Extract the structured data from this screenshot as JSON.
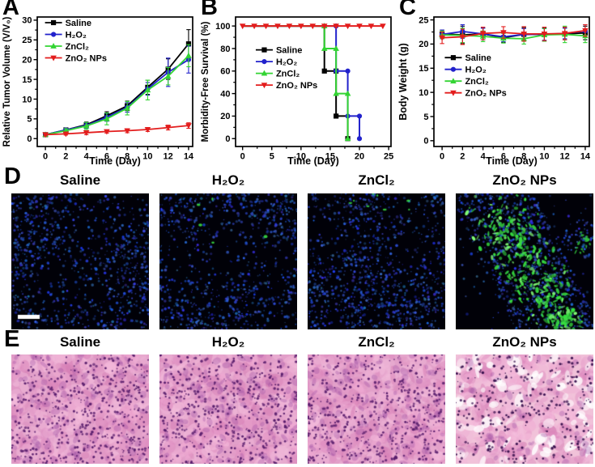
{
  "colors": {
    "background": "#ffffff",
    "axis": "#000000",
    "saline": "#000000",
    "h2o2_blue": "#2222cc",
    "zncl2_green": "#33d433",
    "zno2_red": "#e31d1d",
    "dapi_blue": "#2b3fd6",
    "tunel_green": "#3ce146",
    "he_pink": "#e2a0c9",
    "he_nucleus": "#4e1a63"
  },
  "chart_data": [
    {
      "panel_label": "A",
      "type": "line",
      "xlabel": "Time (Day)",
      "ylabel": "Relative Tumor Volume (V/V₀)",
      "ylabel_size": 11.5,
      "x": [
        0,
        2,
        4,
        6,
        8,
        10,
        12,
        14
      ],
      "xlim": [
        -0.8,
        14.4
      ],
      "ylim": [
        -2,
        30.8
      ],
      "xticks": [
        0,
        2,
        4,
        6,
        8,
        10,
        12,
        14
      ],
      "yticks": [
        0,
        5,
        10,
        15,
        20,
        25,
        30
      ],
      "legend": {
        "fx": 0.05,
        "fy": 0.0
      },
      "series": [
        {
          "name": "Saline",
          "color": "#000000",
          "marker": "square",
          "values": [
            1,
            2.2,
            3.5,
            5.8,
            8.3,
            13,
            17.6,
            24
          ],
          "errors": [
            0.3,
            0.4,
            0.7,
            1,
            1.2,
            1.8,
            2.6,
            3.6
          ]
        },
        {
          "name": "H₂O₂",
          "color": "#2222cc",
          "marker": "circle",
          "values": [
            1,
            2.2,
            3.3,
            5.4,
            7.9,
            12.6,
            16.8,
            20
          ],
          "errors": [
            0.3,
            0.4,
            0.7,
            1,
            1.2,
            1.6,
            3.6,
            3.4
          ]
        },
        {
          "name": "ZnCl₂",
          "color": "#33d433",
          "marker": "triangle-up",
          "values": [
            1,
            2,
            3.2,
            5,
            7.7,
            12.3,
            15.8,
            21
          ],
          "errors": [
            0.3,
            0.5,
            0.9,
            1.5,
            1.7,
            2.5,
            2.2,
            2.8
          ]
        },
        {
          "name": "ZnO₂ NPs",
          "color": "#e31d1d",
          "marker": "triangle-down",
          "values": [
            1,
            1.2,
            1.5,
            1.8,
            2,
            2.3,
            2.8,
            3.3
          ],
          "errors": [
            0.3,
            0.3,
            0.5,
            0.4,
            0.5,
            0.5,
            0.6,
            0.7
          ]
        }
      ]
    },
    {
      "panel_label": "B",
      "type": "step",
      "xlabel": "Time (Day)",
      "ylabel": "Morbidity-Free Survival (%)",
      "ylabel_size": 11.5,
      "xlim": [
        -1.2,
        25.4
      ],
      "ylim": [
        -7,
        108
      ],
      "xticks": [
        0,
        5,
        10,
        15,
        20,
        25
      ],
      "yticks": [
        0,
        20,
        40,
        60,
        80,
        100
      ],
      "legend": {
        "fx": 0.13,
        "fy": 0.21
      },
      "series": [
        {
          "name": "Saline",
          "color": "#000000",
          "marker": "square",
          "points": [
            [
              0,
              100
            ],
            [
              14,
              100
            ],
            [
              14,
              60
            ],
            [
              16,
              60
            ],
            [
              16,
              20
            ],
            [
              18,
              20
            ],
            [
              18,
              0
            ]
          ],
          "marker_points": [
            [
              14,
              60
            ],
            [
              16,
              60
            ],
            [
              16,
              20
            ],
            [
              18,
              0
            ]
          ]
        },
        {
          "name": "H₂O₂",
          "color": "#2222cc",
          "marker": "circle",
          "points": [
            [
              0,
              100
            ],
            [
              16,
              100
            ],
            [
              16,
              60
            ],
            [
              18,
              60
            ],
            [
              18,
              20
            ],
            [
              20,
              20
            ],
            [
              20,
              0
            ]
          ],
          "marker_points": [
            [
              16,
              100
            ],
            [
              16,
              60
            ],
            [
              18,
              60
            ],
            [
              18,
              20
            ],
            [
              20,
              20
            ],
            [
              20,
              0
            ]
          ]
        },
        {
          "name": "ZnCl₂",
          "color": "#33d433",
          "marker": "triangle-up",
          "points": [
            [
              0,
              100
            ],
            [
              14,
              100
            ],
            [
              14,
              80
            ],
            [
              16,
              80
            ],
            [
              16,
              40
            ],
            [
              18,
              40
            ],
            [
              18,
              0
            ]
          ],
          "marker_points": [
            [
              14,
              100
            ],
            [
              14,
              80
            ],
            [
              16,
              80
            ],
            [
              16,
              40
            ],
            [
              18,
              40
            ],
            [
              18,
              0
            ]
          ]
        },
        {
          "name": "ZnO₂ NPs",
          "color": "#e31d1d",
          "marker": "triangle-down",
          "points": [
            [
              0,
              100
            ],
            [
              24,
              100
            ]
          ],
          "marker_points": [
            [
              0,
              100
            ],
            [
              2,
              100
            ],
            [
              4,
              100
            ],
            [
              6,
              100
            ],
            [
              8,
              100
            ],
            [
              10,
              100
            ],
            [
              12,
              100
            ],
            [
              14,
              100
            ],
            [
              16,
              100
            ],
            [
              18,
              100
            ],
            [
              20,
              100
            ],
            [
              22,
              100
            ],
            [
              24,
              100
            ]
          ]
        }
      ]
    },
    {
      "panel_label": "C",
      "type": "line",
      "xlabel": "Time (Day)",
      "ylabel": "Body Weight (g)",
      "ylabel_size": 12.5,
      "x": [
        0,
        2,
        4,
        6,
        8,
        10,
        12,
        14
      ],
      "xlim": [
        -0.8,
        14.4
      ],
      "ylim": [
        -1.2,
        25.6
      ],
      "xticks": [
        0,
        2,
        4,
        6,
        8,
        10,
        12,
        14
      ],
      "yticks": [
        0,
        5,
        10,
        15,
        20,
        25
      ],
      "legend": {
        "fx": 0.07,
        "fy": 0.27
      },
      "series": [
        {
          "name": "Saline",
          "color": "#000000",
          "marker": "square",
          "values": [
            22.1,
            21.9,
            22.1,
            21.3,
            22,
            22,
            22.1,
            22.3
          ],
          "errors": [
            0.8,
            1.8,
            1.2,
            1,
            1.4,
            1.4,
            1.2,
            1.4
          ]
        },
        {
          "name": "H₂O₂",
          "color": "#2222cc",
          "marker": "circle",
          "values": [
            22,
            22.6,
            22.1,
            21.5,
            22,
            22,
            22.2,
            22.7
          ],
          "errors": [
            0.9,
            1.4,
            1.2,
            1,
            1.2,
            1.2,
            1.1,
            1.3
          ]
        },
        {
          "name": "ZnCl₂",
          "color": "#33d433",
          "marker": "triangle-up",
          "values": [
            21.9,
            21.8,
            21.6,
            21.2,
            21.1,
            21.9,
            22,
            21.7
          ],
          "errors": [
            0.8,
            1.5,
            1.1,
            1,
            1.1,
            1.3,
            1.7,
            1.4
          ]
        },
        {
          "name": "ZnO₂ NPs",
          "color": "#e31d1d",
          "marker": "triangle-down",
          "values": [
            21.3,
            21.5,
            22.2,
            22.4,
            22.1,
            22.1,
            22.2,
            22.8
          ],
          "errors": [
            1.2,
            1.6,
            1.3,
            1.2,
            1.5,
            1.4,
            1.3,
            1.2
          ]
        }
      ]
    }
  ],
  "micro_rows": [
    {
      "panel_label": "D",
      "assay": "fluorescence",
      "columns": [
        {
          "title": "Saline",
          "green_signal": "none",
          "scale_bar": true
        },
        {
          "title": "H₂O₂",
          "green_signal": "sparse",
          "scale_bar": false
        },
        {
          "title": "ZnCl₂",
          "green_signal": "sparse-top",
          "scale_bar": false
        },
        {
          "title": "ZnO₂ NPs",
          "green_signal": "abundant",
          "scale_bar": false
        }
      ]
    },
    {
      "panel_label": "E",
      "assay": "histology",
      "columns": [
        {
          "title": "Saline",
          "tissue": "dense"
        },
        {
          "title": "H₂O₂",
          "tissue": "dense"
        },
        {
          "title": "ZnCl₂",
          "tissue": "dense"
        },
        {
          "title": "ZnO₂ NPs",
          "tissue": "damaged"
        }
      ]
    }
  ]
}
